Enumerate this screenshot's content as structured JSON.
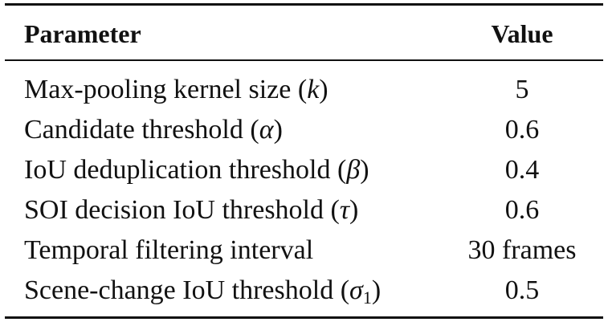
{
  "table": {
    "header": {
      "parameter": "Parameter",
      "value": "Value"
    },
    "rows": [
      {
        "label": "Max-pooling kernel size",
        "symbol": "k",
        "subscript": "",
        "value": "5"
      },
      {
        "label": "Candidate threshold",
        "symbol": "α",
        "subscript": "",
        "value": "0.6"
      },
      {
        "label": "IoU deduplication threshold",
        "symbol": "β",
        "subscript": "",
        "value": "0.4"
      },
      {
        "label": "SOI decision IoU threshold",
        "symbol": "τ",
        "subscript": "",
        "value": "0.6"
      },
      {
        "label": "Temporal filtering interval",
        "symbol": "",
        "subscript": "",
        "value": "30 frames"
      },
      {
        "label": "Scene-change IoU threshold",
        "symbol": "σ",
        "subscript": "1",
        "value": "0.5"
      }
    ]
  }
}
